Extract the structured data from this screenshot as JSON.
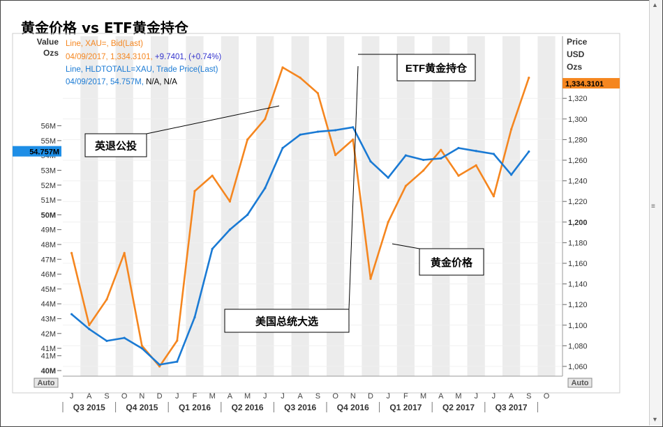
{
  "title": "黄金价格 vs ETF黄金持仓",
  "left_axis": {
    "header": [
      "Value",
      "Ozs"
    ],
    "ticks": [
      "40M",
      "41M",
      "41M",
      "42M",
      "43M",
      "44M",
      "45M",
      "46M",
      "47M",
      "48M",
      "49M",
      "50M",
      "51M",
      "52M",
      "53M",
      "54M",
      "55M",
      "56M"
    ],
    "bold_ticks": [
      "40M",
      "50M"
    ],
    "current_label": "54.757M",
    "auto_label": "Auto"
  },
  "right_axis": {
    "header": [
      "Price",
      "USD",
      "Ozs"
    ],
    "ticks": [
      "1,060",
      "1,080",
      "1,100",
      "1,120",
      "1,140",
      "1,160",
      "1,180",
      "1,200",
      "1,220",
      "1,240",
      "1,260",
      "1,280",
      "1,300",
      "1,320"
    ],
    "bold_ticks": [
      "1,200"
    ],
    "current_label": "1,334.3101",
    "auto_label": "Auto"
  },
  "legend": {
    "gold_line1": "Line, XAU=, Bid(Last)",
    "gold_line2_prefix": "04/09/2017, 1,334.3101, ",
    "gold_line2_change": "+9.7401, (+0.74%)",
    "etf_line1": "Line, HLDTOTALL=XAU, Trade Price(Last)",
    "etf_line2_prefix": "04/09/2017, 54.757M, ",
    "etf_line2_suffix": "N/A, N/A"
  },
  "annotations": {
    "brexit": "英退公投",
    "election": "美国总统大选",
    "etf": "ETF黄金持仓",
    "gold": "黄金价格"
  },
  "x_axis": {
    "months": [
      "J",
      "A",
      "S",
      "O",
      "N",
      "D",
      "J",
      "F",
      "M",
      "A",
      "M",
      "J",
      "J",
      "A",
      "S",
      "O",
      "N",
      "D",
      "J",
      "F",
      "M",
      "A",
      "M",
      "J",
      "J",
      "A",
      "S",
      "O"
    ],
    "quarters": [
      "Q3 2015",
      "Q4 2015",
      "Q1 2016",
      "Q2 2016",
      "Q3 2016",
      "Q4 2016",
      "Q1 2017",
      "Q2 2017",
      "Q3 2017"
    ]
  },
  "colors": {
    "gold": "#f5861f",
    "etf": "#1a7ad4",
    "highlight_blue": "#1e8ee6",
    "highlight_orange": "#f5861f",
    "band": "#ececec"
  },
  "chart_data": {
    "type": "line",
    "x": [
      "2015-07",
      "2015-08",
      "2015-09",
      "2015-10",
      "2015-11",
      "2015-12",
      "2016-01",
      "2016-02",
      "2016-03",
      "2016-04",
      "2016-05",
      "2016-06",
      "2016-07",
      "2016-08",
      "2016-09",
      "2016-10",
      "2016-11",
      "2016-12",
      "2017-01",
      "2017-02",
      "2017-03",
      "2017-04",
      "2017-05",
      "2017-06",
      "2017-07",
      "2017-08",
      "2017-09"
    ],
    "series": [
      {
        "name": "Line, XAU=, Bid(Last)",
        "axis": "right",
        "unit": "USD/oz",
        "values": [
          1170,
          1100,
          1125,
          1170,
          1080,
          1060,
          1085,
          1230,
          1245,
          1220,
          1280,
          1300,
          1350,
          1340,
          1325,
          1265,
          1280,
          1145,
          1200,
          1235,
          1250,
          1270,
          1245,
          1255,
          1225,
          1290,
          1340
        ]
      },
      {
        "name": "Line, HLDTOTALL=XAU, Trade Price(Last)",
        "axis": "left",
        "unit": "Ozs",
        "values": [
          43.8,
          42.8,
          42.0,
          42.2,
          41.5,
          40.4,
          40.6,
          43.6,
          48.2,
          49.5,
          50.5,
          52.3,
          55.0,
          55.9,
          56.1,
          56.2,
          56.4,
          54.1,
          53.0,
          54.5,
          54.2,
          54.3,
          55.0,
          54.8,
          54.6,
          53.2,
          54.76
        ]
      }
    ],
    "left_ylim": [
      40,
      56.5
    ],
    "right_ylim": [
      1050,
      1340
    ],
    "grid": true,
    "legend_placement": "top-left"
  }
}
